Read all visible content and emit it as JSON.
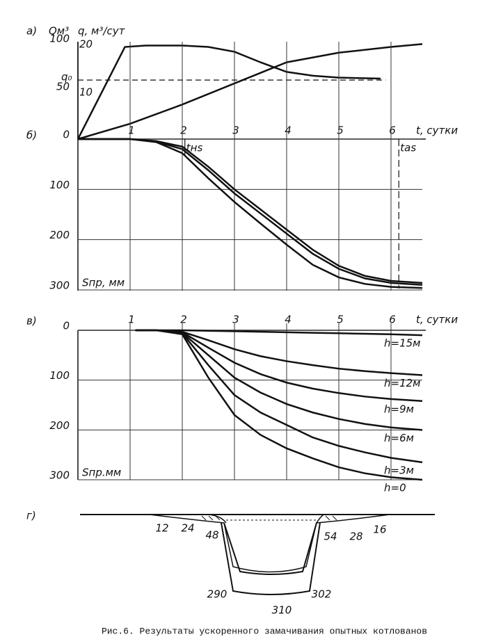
{
  "chart_data": [
    {
      "type": "line",
      "panel": "а)",
      "ylabel": "Qм³",
      "y2label": "q, м³/сут",
      "xlim": [
        0,
        6.6
      ],
      "ylim": [
        0,
        100
      ],
      "yticks": [
        50,
        100
      ],
      "y2lim": [
        0,
        20
      ],
      "y2ticks": [
        10,
        20
      ],
      "grid": true,
      "series": [
        {
          "name": "q",
          "axis": "y2",
          "color": "#111",
          "x": [
            0,
            0.9,
            1.3,
            2,
            2.5,
            3,
            3.5,
            4,
            4.5,
            5,
            5.8
          ],
          "values": [
            0,
            19.2,
            19.5,
            19.5,
            19.2,
            18.2,
            16,
            14,
            13.2,
            12.8,
            12.6
          ]
        },
        {
          "name": "Q",
          "color": "#111",
          "x": [
            0,
            1,
            2,
            3,
            4,
            5,
            6,
            6.6
          ],
          "values": [
            0,
            16,
            36,
            58,
            80,
            90,
            96,
            99
          ]
        }
      ],
      "reference_line": {
        "label": "q₀",
        "value": 12.3,
        "axis": "y2",
        "xlim": [
          0,
          5.9
        ]
      }
    },
    {
      "type": "line",
      "panel": "б)",
      "xlabel": "t, сутки",
      "ylabel": "Sпр, мм",
      "xlim": [
        0,
        6.6
      ],
      "xticks": [
        1,
        2,
        3,
        4,
        5,
        6
      ],
      "ylim": [
        0,
        300
      ],
      "yticks": [
        0,
        100,
        200,
        300
      ],
      "grid": true,
      "series": [
        {
          "color": "#111",
          "x": [
            0,
            1,
            1.5,
            2,
            2.5,
            3,
            3.5,
            4,
            4.5,
            5,
            5.5,
            6,
            6.6
          ],
          "values": [
            0,
            0,
            4,
            15,
            55,
            100,
            140,
            180,
            220,
            252,
            272,
            282,
            286
          ]
        },
        {
          "color": "#111",
          "x": [
            0,
            1,
            1.5,
            2,
            2.5,
            3,
            3.5,
            4,
            4.5,
            5,
            5.5,
            6,
            6.6
          ],
          "values": [
            0,
            0,
            5,
            20,
            62,
            108,
            148,
            188,
            228,
            258,
            277,
            286,
            290
          ]
        },
        {
          "color": "#111",
          "x": [
            0,
            1,
            1.5,
            2,
            2.5,
            3,
            3.5,
            4,
            4.5,
            5,
            5.5,
            6,
            6.6
          ],
          "values": [
            0,
            0,
            6,
            28,
            78,
            125,
            168,
            210,
            250,
            275,
            288,
            294,
            296
          ]
        }
      ],
      "annotations": [
        {
          "text": "tнs",
          "x": 2.05
        },
        {
          "text": "tas",
          "x": 6.15
        }
      ]
    },
    {
      "type": "line",
      "panel": "в)",
      "xlabel": "t, сутки",
      "ylabel": "Sпр.мм",
      "xlim": [
        0,
        6.6
      ],
      "xticks": [
        1,
        2,
        3,
        4,
        5,
        6
      ],
      "ylim": [
        0,
        300
      ],
      "yticks": [
        0,
        100,
        200,
        300
      ],
      "grid": true,
      "series": [
        {
          "name": "h=15м",
          "color": "#111",
          "x": [
            1.1,
            1.5,
            2,
            2.5,
            3,
            3.5,
            4,
            4.5,
            5,
            5.5,
            6,
            6.6
          ],
          "values": [
            0,
            0,
            0,
            1,
            2,
            3,
            4,
            5,
            6,
            7,
            8,
            10
          ]
        },
        {
          "name": "h=12м",
          "color": "#111",
          "x": [
            1.1,
            1.5,
            2,
            2.5,
            3,
            3.5,
            4,
            4.5,
            5,
            5.5,
            6,
            6.6
          ],
          "values": [
            0,
            0,
            3,
            20,
            38,
            52,
            62,
            70,
            77,
            82,
            86,
            90
          ]
        },
        {
          "name": "h=9м",
          "color": "#111",
          "x": [
            1.1,
            1.5,
            2,
            2.5,
            3,
            3.5,
            4,
            4.5,
            5,
            5.5,
            6,
            6.6
          ],
          "values": [
            0,
            0,
            4,
            35,
            65,
            88,
            105,
            117,
            126,
            133,
            138,
            142
          ]
        },
        {
          "name": "h=6м",
          "color": "#111",
          "x": [
            1.1,
            1.5,
            2,
            2.5,
            3,
            3.5,
            4,
            4.5,
            5,
            5.5,
            6,
            6.6
          ],
          "values": [
            0,
            0,
            5,
            50,
            95,
            125,
            148,
            165,
            178,
            188,
            195,
            200
          ]
        },
        {
          "name": "h=3м",
          "color": "#111",
          "x": [
            1.1,
            1.5,
            2,
            2.5,
            3,
            3.5,
            4,
            4.5,
            5,
            5.5,
            6,
            6.6
          ],
          "values": [
            0,
            0,
            6,
            70,
            130,
            165,
            190,
            215,
            232,
            245,
            256,
            265
          ]
        },
        {
          "name": "h=0",
          "color": "#111",
          "x": [
            1.1,
            1.5,
            2,
            2.5,
            3,
            3.5,
            4,
            4.5,
            5,
            5.5,
            6,
            6.6
          ],
          "values": [
            0,
            0,
            8,
            95,
            170,
            210,
            237,
            257,
            275,
            287,
            295,
            300
          ]
        }
      ]
    }
  ],
  "cross_section": {
    "panel": "г)",
    "labels": [
      12,
      24,
      48,
      54,
      28,
      16,
      290,
      302,
      310
    ]
  },
  "caption": "Рис.6. Результаты ускоренного замачивания опытных котлованов"
}
